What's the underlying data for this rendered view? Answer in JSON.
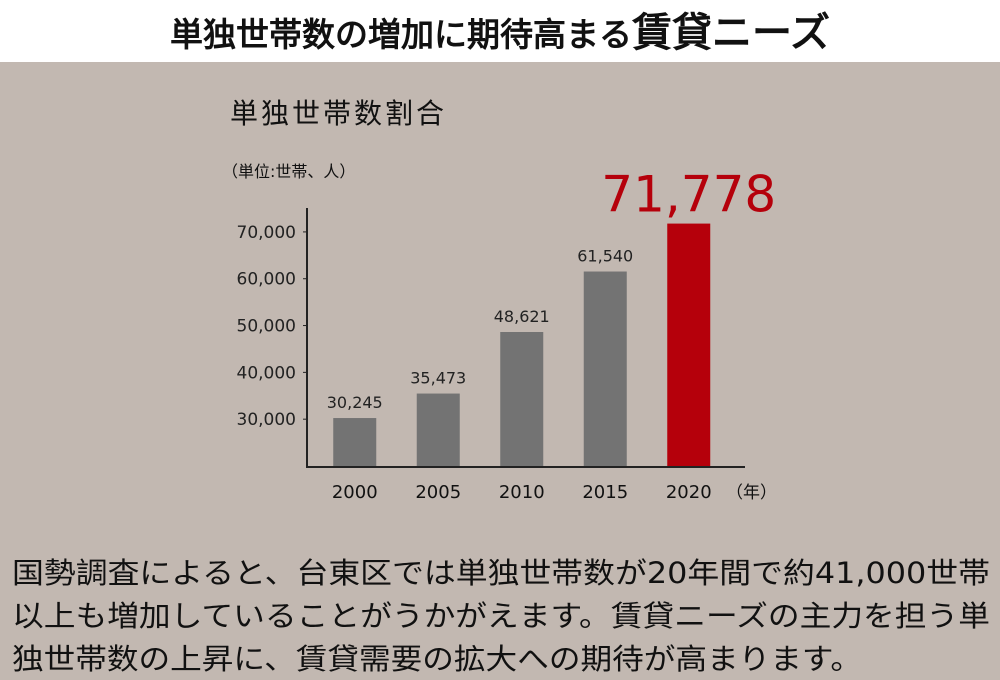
{
  "header": {
    "title": "単独世帯数の増加に期待高まる",
    "title_emphasis": "賃貸ニーズ"
  },
  "chart_data": {
    "type": "bar",
    "title": "単独世帯数割合",
    "unit": "（単位:世帯、人）",
    "categories": [
      "2000",
      "2005",
      "2010",
      "2015",
      "2020"
    ],
    "x_unit": "（年）",
    "values": [
      30245,
      35473,
      48621,
      61540,
      71778
    ],
    "value_labels": [
      "30,245",
      "35,473",
      "48,621",
      "61,540",
      "71,778"
    ],
    "colors": [
      "#737373",
      "#737373",
      "#737373",
      "#737373",
      "#b5000b"
    ],
    "ylim": [
      20000,
      75000
    ],
    "yticks": [
      {
        "value": 30000,
        "label": "30,000"
      },
      {
        "value": 40000,
        "label": "40,000"
      },
      {
        "value": 50000,
        "label": "50,000"
      },
      {
        "value": 60000,
        "label": "60,000"
      },
      {
        "value": 70000,
        "label": "70,000"
      }
    ]
  },
  "body": {
    "lines": [
      "国勢調査によると、台東区では単独世帯数が20年間で約41,000世帯",
      "以上も増加していることがうかがえます。賃貸ニーズの主力を担う単",
      "独世帯数の上昇に、賃貸需要の拡大への期待が高まります。"
    ]
  }
}
